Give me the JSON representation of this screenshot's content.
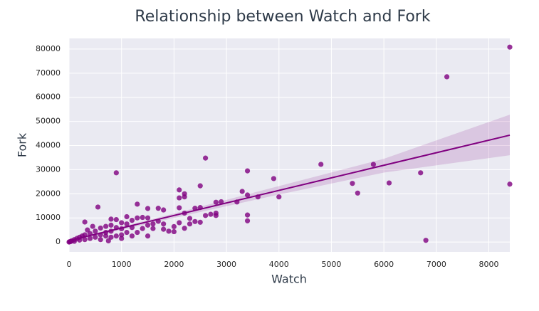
{
  "chart_data": {
    "type": "scatter",
    "title": "Relationship between Watch and Fork",
    "x_label": "Watch",
    "y_label": "Fork",
    "color": "#800080",
    "grid": true,
    "xlim": [
      0,
      8400
    ],
    "ylim": [
      -4100,
      84400
    ],
    "xticks": [
      0,
      1000,
      2000,
      3000,
      4000,
      5000,
      6000,
      7000,
      8000
    ],
    "yticks": [
      0,
      10000,
      20000,
      30000,
      40000,
      50000,
      60000,
      70000,
      80000
    ],
    "x": [
      8400,
      7200,
      8400,
      6800,
      6700,
      6100,
      5800,
      5500,
      5400,
      4800,
      4000,
      3900,
      3600,
      3400,
      3400,
      3400,
      3400,
      3300,
      3200,
      2900,
      2800,
      2800,
      2800,
      2700,
      2600,
      2600,
      2500,
      2500,
      2500,
      2400,
      2400,
      2300,
      2300,
      2200,
      2200,
      2200,
      2200,
      2100,
      2100,
      2100,
      2100,
      2000,
      2000,
      1900,
      1800,
      1800,
      1800,
      1700,
      1700,
      1600,
      1600,
      1500,
      1500,
      1500,
      1500,
      1400,
      1400,
      1300,
      1300,
      1300,
      1200,
      1200,
      1200,
      1100,
      1100,
      1100,
      1000,
      1000,
      1000,
      900,
      900,
      900,
      900,
      800,
      800,
      800,
      800,
      750,
      700,
      700,
      600,
      600,
      550,
      500,
      500,
      450,
      400,
      400,
      350,
      300,
      300,
      300,
      250,
      200,
      200,
      150,
      100,
      100,
      50,
      30,
      0,
      10,
      600,
      1000,
      700
    ],
    "values": [
      80800,
      68500,
      24000,
      700,
      28700,
      24500,
      32200,
      20300,
      24300,
      32200,
      18700,
      26300,
      18700,
      29500,
      19500,
      11200,
      8800,
      21000,
      16600,
      16700,
      16500,
      12000,
      11000,
      11500,
      34800,
      11000,
      23300,
      14300,
      8200,
      14000,
      8500,
      9800,
      7500,
      20000,
      18700,
      12000,
      5700,
      21600,
      18300,
      14200,
      8000,
      4300,
      6400,
      4500,
      13300,
      7500,
      5300,
      14000,
      8600,
      5600,
      7500,
      13900,
      10000,
      7000,
      2500,
      10200,
      5600,
      15700,
      10000,
      4000,
      9000,
      6000,
      2500,
      10500,
      7500,
      4000,
      8000,
      5500,
      3000,
      28700,
      9300,
      6000,
      2500,
      9500,
      7000,
      4500,
      2000,
      500,
      6500,
      4000,
      5800,
      3000,
      14500,
      4500,
      2000,
      6500,
      3500,
      1500,
      5000,
      8300,
      3000,
      1000,
      2500,
      2000,
      800,
      1500,
      1000,
      300,
      500,
      200,
      0,
      100,
      1000,
      1500,
      2500
    ],
    "fit_line": {
      "x": [
        0,
        8400
      ],
      "y": [
        600,
        44300
      ]
    },
    "band": {
      "x": [
        0,
        700,
        2000,
        4000,
        6000,
        8400
      ],
      "upper": [
        1200,
        4700,
        11800,
        23200,
        34500,
        52800
      ],
      "lower": [
        0,
        3600,
        10000,
        19700,
        28800,
        36000
      ]
    }
  }
}
